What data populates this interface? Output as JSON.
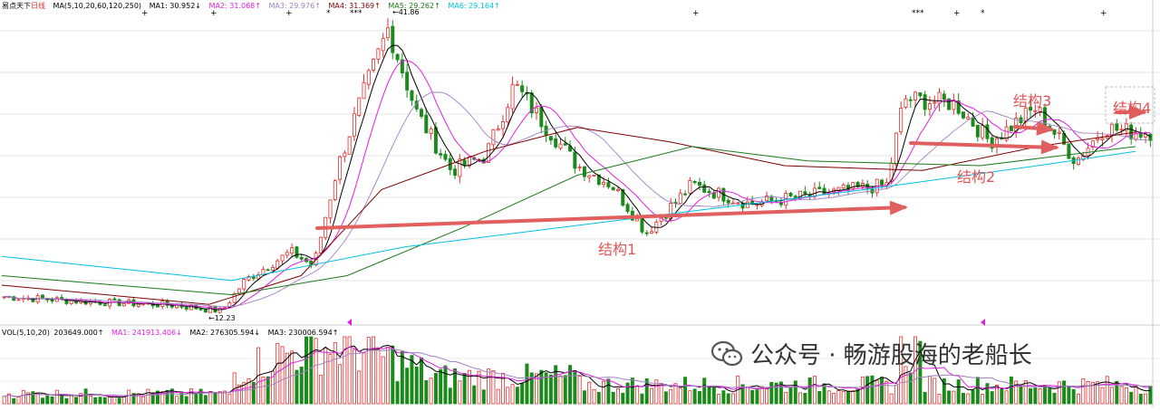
{
  "header": {
    "title": "易点天下",
    "period": "日线",
    "ma_label": "MA(5,10,20,60,120,250)",
    "ma1": "MA1: 30.952↓",
    "ma2": "MA2: 31.068↑",
    "ma3": "MA3: 29.976↑",
    "ma4": "MA4: 31.369↑",
    "ma5": "MA5: 29.262↑",
    "ma6": "MA6: 29.164↑"
  },
  "volume_header": {
    "vol_label": "VOL(5,10,20)",
    "vol_value": "203649.000↑",
    "ma1": "MA1: 241913.406↓",
    "ma2": "MA2: 276305.594↓",
    "ma3": "MA3: 230006.594↑"
  },
  "price_markers": {
    "high": "41.86",
    "low": "12.23"
  },
  "annotations": {
    "s1": "结构1",
    "s2": "结构2",
    "s3": "结构3",
    "s4": "结构4"
  },
  "watermark": {
    "text": "公众号 · 畅游股海的老船长",
    "icon": "wechat-icon"
  },
  "colors": {
    "up": "#e03030",
    "down": "#1a8a1a",
    "ma5": "#000000",
    "ma10": "#e020e0",
    "ma20": "#a080c0",
    "ma60": "#800000",
    "ma120": "#1a7a1a",
    "ma250": "#00c0e0",
    "arrow": "#e06060"
  },
  "chart_data": {
    "type": "candlestick",
    "series_names": [
      "MA5",
      "MA10",
      "MA20",
      "MA60",
      "MA120",
      "MA250"
    ],
    "anchors": [
      {
        "x": 0,
        "y": 13.8
      },
      {
        "x": 0.07,
        "y": 13.3
      },
      {
        "x": 0.15,
        "y": 12.9
      },
      {
        "x": 0.19,
        "y": 12.3
      },
      {
        "x": 0.21,
        "y": 15.5
      },
      {
        "x": 0.25,
        "y": 18.5
      },
      {
        "x": 0.27,
        "y": 17.0
      },
      {
        "x": 0.29,
        "y": 27.0
      },
      {
        "x": 0.31,
        "y": 34.0
      },
      {
        "x": 0.335,
        "y": 41.86
      },
      {
        "x": 0.36,
        "y": 33.0
      },
      {
        "x": 0.39,
        "y": 27.0
      },
      {
        "x": 0.42,
        "y": 28.5
      },
      {
        "x": 0.445,
        "y": 36.0
      },
      {
        "x": 0.47,
        "y": 32.0
      },
      {
        "x": 0.5,
        "y": 27.5
      },
      {
        "x": 0.53,
        "y": 25.5
      },
      {
        "x": 0.56,
        "y": 20.5
      },
      {
        "x": 0.6,
        "y": 25.5
      },
      {
        "x": 0.65,
        "y": 23.5
      },
      {
        "x": 0.71,
        "y": 24.5
      },
      {
        "x": 0.77,
        "y": 25.5
      },
      {
        "x": 0.785,
        "y": 34.5
      },
      {
        "x": 0.83,
        "y": 34.0
      },
      {
        "x": 0.86,
        "y": 30.0
      },
      {
        "x": 0.9,
        "y": 33.5
      },
      {
        "x": 0.935,
        "y": 28.0
      },
      {
        "x": 0.96,
        "y": 31.5
      },
      {
        "x": 0.985,
        "y": 31.0
      }
    ],
    "ma250_path": [
      [
        0,
        18.0
      ],
      [
        0.2,
        15.5
      ],
      [
        0.35,
        19.0
      ],
      [
        0.55,
        22.0
      ],
      [
        0.75,
        25.0
      ],
      [
        0.9,
        27.5
      ],
      [
        0.985,
        29.0
      ]
    ],
    "ma120_path": [
      [
        0,
        16.0
      ],
      [
        0.2,
        14.0
      ],
      [
        0.3,
        16.0
      ],
      [
        0.4,
        21.0
      ],
      [
        0.5,
        26.5
      ],
      [
        0.6,
        29.5
      ],
      [
        0.7,
        28.0
      ],
      [
        0.85,
        27.5
      ],
      [
        0.985,
        29.5
      ]
    ],
    "ma60_path": [
      [
        0,
        15.0
      ],
      [
        0.18,
        13.0
      ],
      [
        0.26,
        16.0
      ],
      [
        0.33,
        25.0
      ],
      [
        0.42,
        29.0
      ],
      [
        0.5,
        31.5
      ],
      [
        0.58,
        30.0
      ],
      [
        0.68,
        27.5
      ],
      [
        0.8,
        27.0
      ],
      [
        0.9,
        29.5
      ],
      [
        0.985,
        31.0
      ]
    ],
    "ylim": [
      11.5,
      43.5
    ]
  }
}
